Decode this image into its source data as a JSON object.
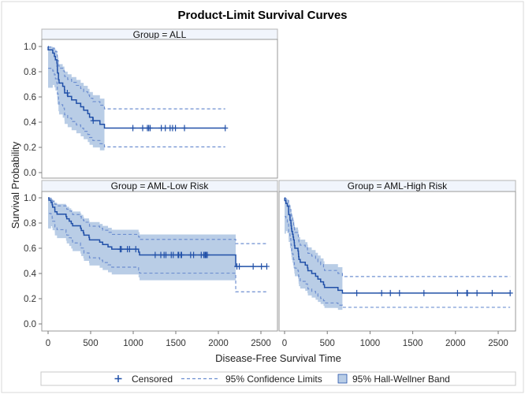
{
  "chart_data": {
    "type": "line",
    "title": "Product-Limit Survival Curves",
    "xlabel": "Disease-Free Survival Time",
    "ylabel": "Survival Probability",
    "xticks": [
      "0",
      "500",
      "1000",
      "1500",
      "2000",
      "2500"
    ],
    "yticks": [
      "0.0",
      "0.2",
      "0.4",
      "0.6",
      "0.8",
      "1.0"
    ],
    "ylim": [
      0,
      1
    ],
    "grid": false,
    "panels": [
      {
        "label": "Group = ALL",
        "group": "ALL",
        "times": [
          2081,
          1602,
          1496,
          1462,
          1433,
          1377,
          1330,
          996,
          226,
          1199,
          1111,
          530,
          1182,
          1167,
          418,
          383,
          276,
          104,
          609,
          172,
          487,
          662,
          194,
          230,
          526,
          122,
          129,
          74,
          122,
          86,
          466,
          192,
          109,
          55,
          1,
          107,
          110,
          332
        ],
        "status": [
          0,
          0,
          0,
          0,
          0,
          0,
          0,
          0,
          0,
          0,
          0,
          0,
          0,
          0,
          1,
          1,
          1,
          1,
          1,
          1,
          1,
          1,
          1,
          1,
          1,
          1,
          1,
          1,
          1,
          1,
          1,
          1,
          1,
          1,
          1,
          1,
          1,
          1
        ]
      },
      {
        "label": "Group = AML-Low Risk",
        "group": "AML-Low Risk",
        "times": [
          2569,
          2506,
          2409,
          2218,
          1857,
          1829,
          1562,
          1470,
          1363,
          1030,
          860,
          1258,
          2246,
          1870,
          1799,
          1709,
          1674,
          1568,
          1527,
          1324,
          957,
          932,
          847,
          848,
          1850,
          1843,
          1535,
          1447,
          1384,
          414,
          2204,
          1063,
          481,
          105,
          641,
          390,
          288,
          421,
          79,
          748,
          486,
          48,
          272,
          1074,
          381,
          10,
          53,
          80,
          35,
          248,
          704,
          211,
          219,
          606
        ],
        "status": [
          0,
          0,
          0,
          0,
          0,
          0,
          0,
          0,
          0,
          0,
          0,
          0,
          0,
          0,
          0,
          0,
          0,
          0,
          0,
          0,
          0,
          0,
          0,
          0,
          0,
          0,
          0,
          0,
          0,
          1,
          1,
          1,
          1,
          1,
          1,
          1,
          1,
          1,
          1,
          1,
          1,
          1,
          1,
          1,
          1,
          1,
          1,
          1,
          1,
          1,
          1,
          1,
          1,
          1
        ]
      },
      {
        "label": "Group = AML-High Risk",
        "group": "AML-High Risk",
        "times": [
          2640,
          2430,
          2252,
          2140,
          2133,
          1238,
          1631,
          2024,
          1345,
          1136,
          845,
          422,
          162,
          84,
          100,
          2,
          47,
          242,
          456,
          268,
          318,
          32,
          467,
          47,
          390,
          183,
          105,
          115,
          164,
          93,
          120,
          80,
          677,
          64,
          168,
          74,
          16,
          157,
          625,
          48,
          273,
          63,
          76,
          113,
          363
        ],
        "status": [
          0,
          0,
          0,
          0,
          0,
          0,
          0,
          0,
          0,
          0,
          0,
          1,
          1,
          1,
          1,
          1,
          1,
          1,
          1,
          1,
          1,
          1,
          1,
          1,
          1,
          1,
          1,
          1,
          1,
          1,
          1,
          1,
          1,
          1,
          1,
          1,
          1,
          1,
          1,
          1,
          1,
          1,
          1,
          1,
          1
        ]
      }
    ],
    "legend": {
      "position": "bottom",
      "items": [
        {
          "label": "Censored",
          "symbol": "plus"
        },
        {
          "label": "95% Confidence Limits",
          "symbol": "dashed-line"
        },
        {
          "label": "95% Hall-Wellner Band",
          "symbol": "filled-box"
        }
      ]
    },
    "colors": {
      "curve": "#2150a8",
      "confidence_limits": "#6e8fd0",
      "band": "#b9cde6",
      "panel_header": "#f1f5fc"
    }
  }
}
